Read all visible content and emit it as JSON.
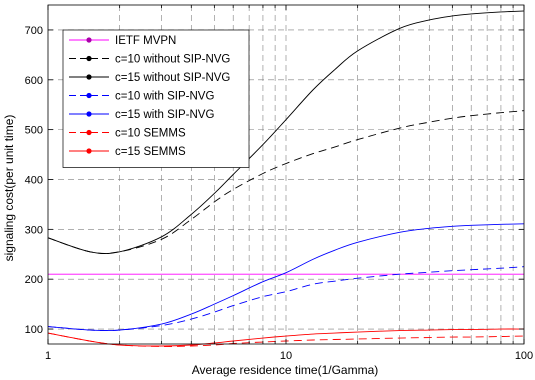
{
  "chart_data": {
    "type": "line",
    "title": "",
    "xlabel": "Average residence time(1/Gamma)",
    "ylabel": "signaling cost(per unit time)",
    "xscale": "log",
    "xlim": [
      1,
      100
    ],
    "ylim": [
      70,
      750
    ],
    "grid": true,
    "legend_position": "top-left",
    "x_ticks": [
      1,
      10,
      100
    ],
    "x_tick_labels": [
      "1",
      "10",
      "100"
    ],
    "y_ticks": [
      100,
      200,
      300,
      400,
      500,
      600,
      700
    ],
    "y_tick_labels": [
      "100",
      "200",
      "300",
      "400",
      "500",
      "600",
      "700"
    ],
    "x": [
      1,
      1.5,
      2,
      3,
      4,
      5,
      6,
      8,
      10,
      13,
      16,
      20,
      30,
      40,
      50,
      60,
      80,
      100
    ],
    "series": [
      {
        "name": "IETF MVPN",
        "color": "#ff00ff",
        "dash": "solid",
        "marker_color": "#aa00aa",
        "values": [
          210,
          210,
          210,
          210,
          210,
          210,
          210,
          210,
          210,
          210,
          210,
          210,
          210,
          210,
          210,
          210,
          210,
          210
        ]
      },
      {
        "name": "c=10 without SIP-NVG",
        "color": "#000000",
        "dash": "dashed",
        "marker_color": "#000000",
        "values": [
          283,
          255,
          255,
          280,
          320,
          355,
          380,
          412,
          432,
          452,
          465,
          480,
          503,
          515,
          523,
          528,
          534,
          538
        ]
      },
      {
        "name": "c=15 without SIP-NVG",
        "color": "#000000",
        "dash": "solid",
        "marker_color": "#000000",
        "values": [
          283,
          255,
          255,
          285,
          330,
          372,
          410,
          470,
          520,
          580,
          620,
          658,
          703,
          720,
          728,
          732,
          736,
          738
        ]
      },
      {
        "name": "c=10 with SIP-NVG",
        "color": "#0000ff",
        "dash": "dashed",
        "marker_color": "#0000ff",
        "values": [
          105,
          98,
          98,
          107,
          120,
          134,
          147,
          165,
          175,
          190,
          196,
          202,
          210,
          214,
          217,
          219,
          222,
          225
        ]
      },
      {
        "name": "c=15 with SIP-NVG",
        "color": "#0000ff",
        "dash": "solid",
        "marker_color": "#0000ff",
        "values": [
          105,
          98,
          98,
          110,
          130,
          150,
          167,
          195,
          213,
          240,
          258,
          274,
          294,
          302,
          306,
          308,
          310,
          311
        ]
      },
      {
        "name": "c=10 SEMMS",
        "color": "#ff0000",
        "dash": "dashed",
        "marker_color": "#ff0000",
        "values": [
          92,
          76,
          68,
          65,
          66,
          68,
          71,
          74,
          76,
          78,
          79,
          80,
          82,
          83,
          84,
          84,
          85,
          86
        ]
      },
      {
        "name": "c=15 SEMMS",
        "color": "#ff0000",
        "dash": "solid",
        "marker_color": "#ff0000",
        "values": [
          92,
          76,
          68,
          66,
          68,
          72,
          76,
          82,
          86,
          90,
          92,
          94,
          97,
          98,
          99,
          99,
          100,
          100
        ]
      }
    ]
  }
}
